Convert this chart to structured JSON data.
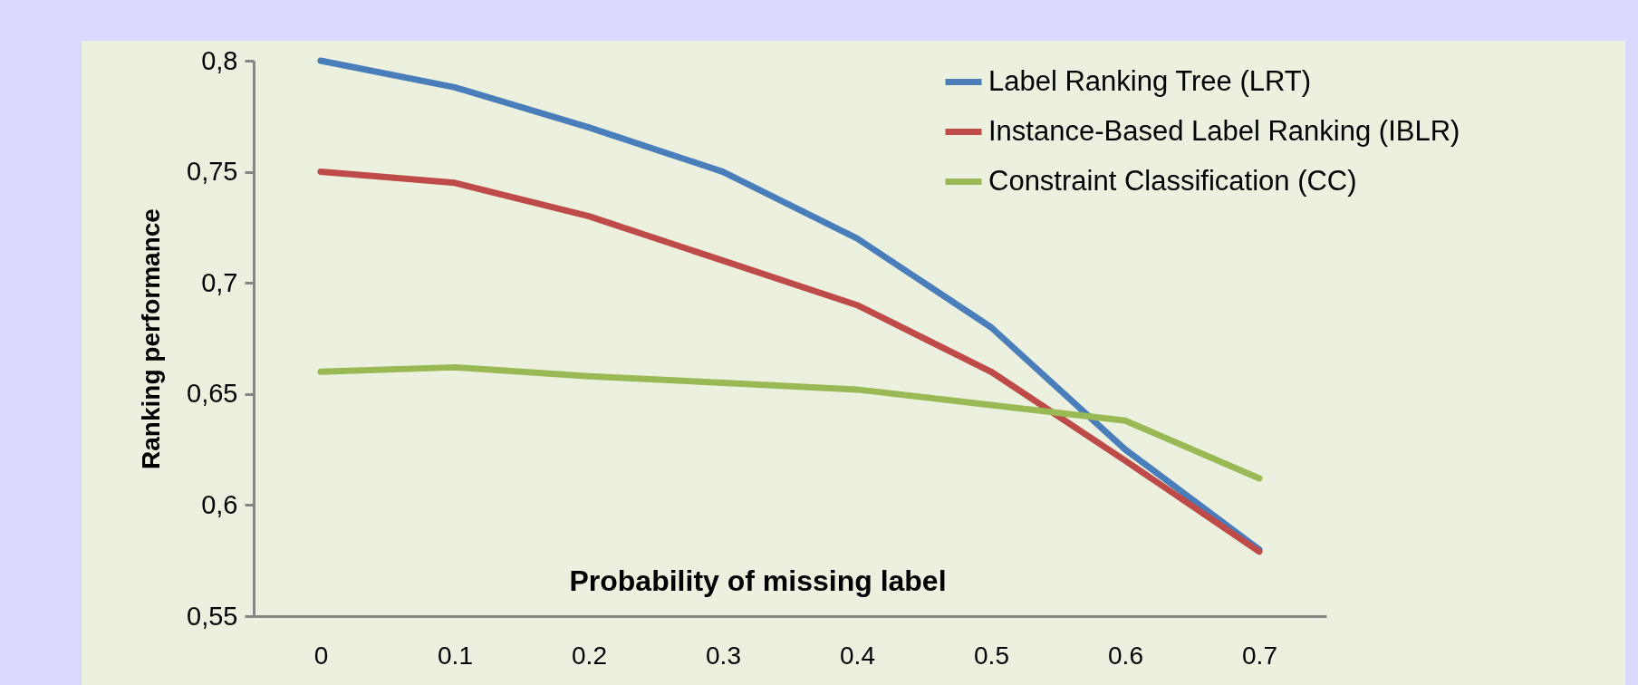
{
  "chart_data": {
    "type": "line",
    "xlabel": "Probability of missing label",
    "ylabel": "Ranking performance",
    "categories": [
      "0",
      "0.1",
      "0.2",
      "0.3",
      "0.4",
      "0.5",
      "0.6",
      "0.7"
    ],
    "series": [
      {
        "name": "Label Ranking Tree (LRT)",
        "color": "#4a7ebb",
        "values": [
          0.8,
          0.788,
          0.77,
          0.75,
          0.72,
          0.68,
          0.625,
          0.58
        ]
      },
      {
        "name": "Instance-Based Label Ranking (IBLR)",
        "color": "#be4b48",
        "values": [
          0.75,
          0.745,
          0.73,
          0.71,
          0.69,
          0.66,
          0.62,
          0.579
        ]
      },
      {
        "name": "Constraint Classification (CC)",
        "color": "#98b954",
        "values": [
          0.66,
          0.662,
          0.658,
          0.655,
          0.652,
          0.645,
          0.638,
          0.612
        ]
      }
    ],
    "ylim": [
      0.55,
      0.8
    ],
    "yticks": [
      {
        "value": 0.55,
        "label": "0,55"
      },
      {
        "value": 0.6,
        "label": "0,6"
      },
      {
        "value": 0.65,
        "label": "0,65"
      },
      {
        "value": 0.7,
        "label": "0,7"
      },
      {
        "value": 0.75,
        "label": "0,75"
      },
      {
        "value": 0.8,
        "label": "0,8"
      }
    ],
    "grid": false,
    "legend": "top right",
    "marker": "none",
    "line_style": "solid"
  }
}
